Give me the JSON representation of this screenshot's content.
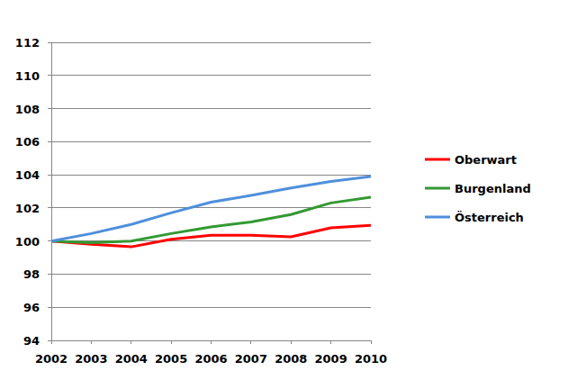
{
  "chart_data": {
    "type": "line",
    "x": [
      2002,
      2003,
      2004,
      2005,
      2006,
      2007,
      2008,
      2009,
      2010
    ],
    "series": [
      {
        "name": "Oberwart",
        "color": "#ff0000",
        "values": [
          100,
          99.8,
          99.65,
          100.1,
          100.35,
          100.35,
          100.25,
          100.8,
          100.95
        ]
      },
      {
        "name": "Burgenland",
        "color": "#339933",
        "values": [
          100,
          99.9,
          100.0,
          100.45,
          100.85,
          101.15,
          101.6,
          102.3,
          102.65
        ]
      },
      {
        "name": "Österreich",
        "color": "#4f8fdc",
        "values": [
          100,
          100.45,
          101.0,
          101.7,
          102.35,
          102.75,
          103.2,
          103.6,
          103.9
        ]
      }
    ],
    "xlim": [
      2002,
      2010
    ],
    "xticks": [
      2002,
      2003,
      2004,
      2005,
      2006,
      2007,
      2008,
      2009,
      2010
    ],
    "ylim": [
      94,
      112
    ],
    "yticks": [
      94,
      96,
      98,
      100,
      102,
      104,
      106,
      108,
      110,
      112
    ],
    "grid": true,
    "legend": "right"
  }
}
